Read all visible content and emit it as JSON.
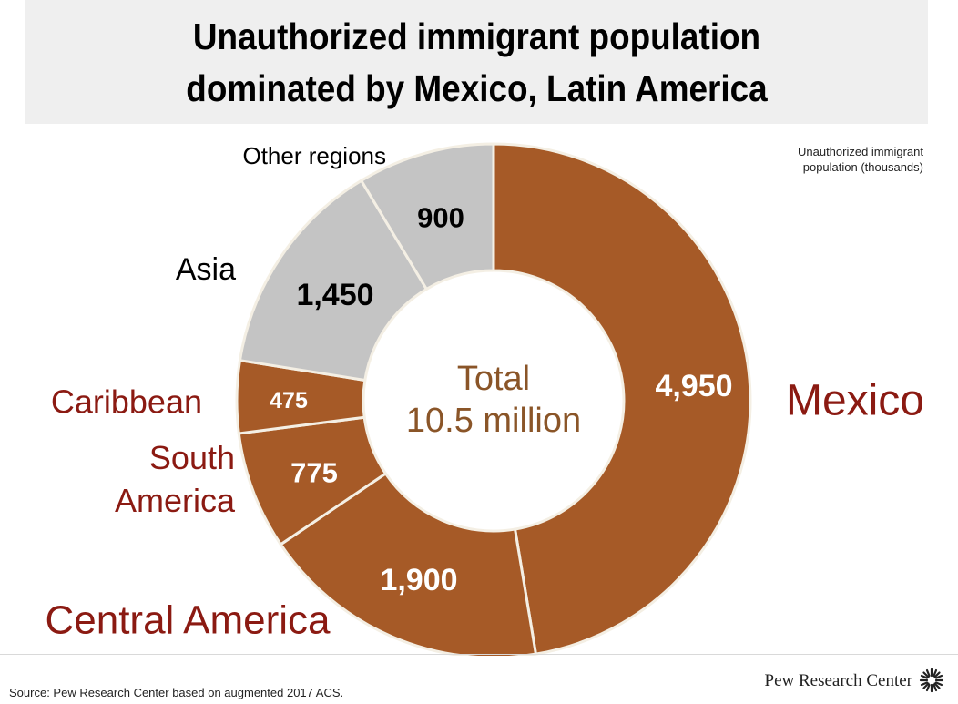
{
  "title": {
    "line1": "Unauthorized immigrant population",
    "line2": "dominated by Mexico, Latin America"
  },
  "units_note": {
    "line1": "Unauthorized immigrant",
    "line2": "population (thousands)"
  },
  "chart_data": {
    "type": "pie",
    "subtype": "donut",
    "center_label": {
      "line1": "Total",
      "line2": "10.5 million"
    },
    "slices": [
      {
        "name": "Mexico",
        "value": 4950,
        "value_label": "4,950",
        "color": "#a65a27",
        "label_color": "#8b1a12"
      },
      {
        "name": "Central America",
        "value": 1900,
        "value_label": "1,900",
        "color": "#a65a27",
        "label_color": "#8b1a12"
      },
      {
        "name": "South America",
        "value": 775,
        "value_label": "775",
        "color": "#a65a27",
        "label_color": "#8b1a12",
        "name_lines": [
          "South",
          "America"
        ]
      },
      {
        "name": "Caribbean",
        "value": 475,
        "value_label": "475",
        "color": "#a65a27",
        "label_color": "#8b1a12"
      },
      {
        "name": "Asia",
        "value": 1450,
        "value_label": "1,450",
        "color": "#c4c4c4",
        "label_color": "#000000"
      },
      {
        "name": "Other regions",
        "value": 900,
        "value_label": "900",
        "color": "#c4c4c4",
        "label_color": "#000000"
      }
    ]
  },
  "footer": {
    "source": "Source: Pew Research Center based on augmented 2017 ACS.",
    "brand": "Pew Research Center"
  }
}
